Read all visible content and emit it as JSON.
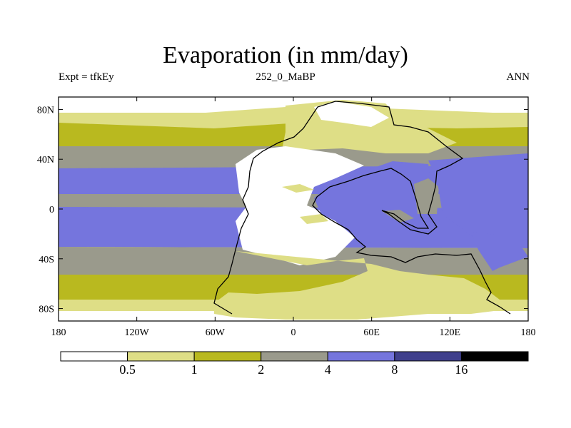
{
  "title": "Evaporation (in mm/day)",
  "left_subtitle": "Expt = tfkEy",
  "center_subtitle": "252_0_MaBP",
  "right_subtitle": "ANN",
  "map": {
    "projection": "cylindrical equidistant",
    "lon_range": [
      -180,
      180
    ],
    "lat_range": [
      -90,
      90
    ],
    "x_ticks": [
      {
        "value": -180,
        "label": "180"
      },
      {
        "value": -120,
        "label": "120W"
      },
      {
        "value": -60,
        "label": "60W"
      },
      {
        "value": 0,
        "label": "0"
      },
      {
        "value": 60,
        "label": "60E"
      },
      {
        "value": 120,
        "label": "120E"
      },
      {
        "value": 180,
        "label": "180"
      }
    ],
    "y_ticks": [
      {
        "value": 80,
        "label": "80N"
      },
      {
        "value": 40,
        "label": "40N"
      },
      {
        "value": 0,
        "label": "0"
      },
      {
        "value": -40,
        "label": "40S"
      },
      {
        "value": -80,
        "label": "80S"
      }
    ],
    "coastline_color": "#000000"
  },
  "colorbar": {
    "colors": [
      "#ffffff",
      "#dede86",
      "#b9b91f",
      "#9a9a8c",
      "#7575dd",
      "#3f3f8c",
      "#000000"
    ],
    "levels": [
      "0.5",
      "1",
      "2",
      "4",
      "8",
      "16"
    ]
  }
}
